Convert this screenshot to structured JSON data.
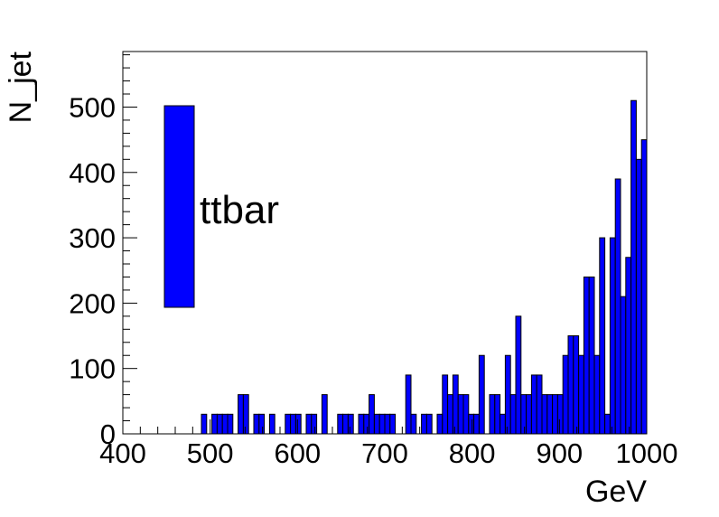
{
  "chart_data": {
    "type": "bar",
    "subtype": "histogram",
    "xlabel": "GeV",
    "ylabel": "N_jet",
    "xlim": [
      400,
      1000
    ],
    "ylim": [
      0,
      585
    ],
    "bin_width": 6,
    "x_ticks": [
      "400",
      "500",
      "600",
      "700",
      "800",
      "900",
      "1000"
    ],
    "y_ticks": [
      "0",
      "100",
      "200",
      "300",
      "400",
      "500"
    ],
    "legend": {
      "label": "ttbar",
      "placement": "top-left",
      "color": "#0000ff"
    },
    "bar_color": "#0000ff",
    "bin_edges_start": 400,
    "values": [
      0,
      0,
      0,
      0,
      0,
      0,
      0,
      0,
      0,
      0,
      0,
      0,
      0,
      0,
      0,
      30,
      0,
      30,
      30,
      30,
      30,
      0,
      60,
      60,
      0,
      30,
      30,
      0,
      30,
      0,
      0,
      30,
      30,
      30,
      0,
      30,
      30,
      0,
      60,
      0,
      0,
      30,
      30,
      30,
      0,
      30,
      30,
      60,
      30,
      30,
      30,
      30,
      0,
      0,
      90,
      30,
      0,
      30,
      30,
      0,
      30,
      90,
      60,
      90,
      60,
      60,
      30,
      30,
      120,
      0,
      60,
      60,
      30,
      120,
      60,
      180,
      60,
      60,
      90,
      90,
      60,
      60,
      60,
      60,
      120,
      150,
      150,
      120,
      240,
      240,
      120,
      300,
      30,
      300,
      390,
      210,
      270,
      510,
      420,
      450
    ]
  }
}
